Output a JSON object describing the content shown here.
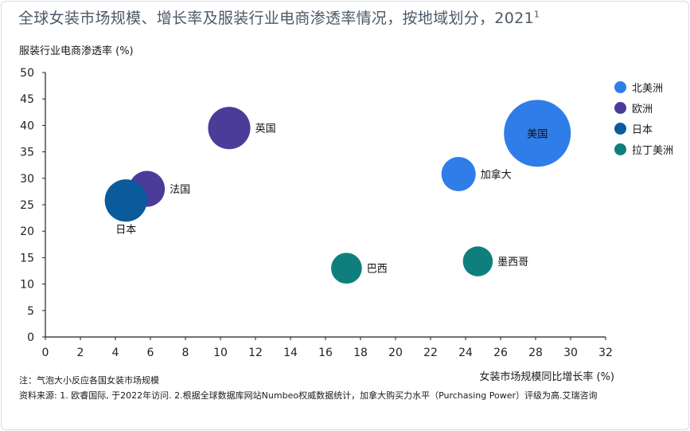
{
  "title": "全球女装市场规模、增长率及服装行业电商渗透率情况，按地域划分，2021",
  "title_sup": "1",
  "note": "注：气泡大小反应各国女装市场规模",
  "source": "资料来源: 1. 欧睿国际, 于2022年访问. 2.根据全球数据库网站Numbeo权威数据统计，加拿大购买力水平（Purchasing Power）评级为高.艾瑞咨询",
  "chart_data": {
    "type": "scatter",
    "xlabel": "女装市场规模同比增长率 (%)",
    "ylabel": "服装行业电商渗透率 (%)",
    "xlim": [
      0,
      32
    ],
    "ylim": [
      0,
      50
    ],
    "xticks": [
      0,
      2,
      4,
      6,
      8,
      10,
      12,
      14,
      16,
      18,
      20,
      22,
      24,
      26,
      28,
      30,
      32
    ],
    "yticks": [
      0,
      5,
      10,
      15,
      20,
      25,
      30,
      35,
      40,
      45,
      50
    ],
    "grid": false,
    "legend_position": "right",
    "legend": [
      {
        "name": "北美洲",
        "color": "#2e7de8"
      },
      {
        "name": "欧洲",
        "color": "#4b3c9a"
      },
      {
        "name": "日本",
        "color": "#0a5b9c"
      },
      {
        "name": "拉丁美洲",
        "color": "#0e7f7c"
      }
    ],
    "points": [
      {
        "label": "美国",
        "group": "北美洲",
        "x": 28.1,
        "y": 38.5,
        "size": 40,
        "label_pos": "center"
      },
      {
        "label": "加拿大",
        "group": "北美洲",
        "x": 23.6,
        "y": 30.8,
        "size": 10.5,
        "label_pos": "right"
      },
      {
        "label": "英国",
        "group": "欧洲",
        "x": 10.5,
        "y": 39.5,
        "size": 16,
        "label_pos": "right"
      },
      {
        "label": "法国",
        "group": "欧洲",
        "x": 5.8,
        "y": 28.0,
        "size": 11.5,
        "label_pos": "right"
      },
      {
        "label": "日本",
        "group": "日本",
        "x": 4.6,
        "y": 25.8,
        "size": 16,
        "label_pos": "below"
      },
      {
        "label": "巴西",
        "group": "拉丁美洲",
        "x": 17.2,
        "y": 13.0,
        "size": 8.5,
        "label_pos": "right"
      },
      {
        "label": "墨西哥",
        "group": "拉丁美洲",
        "x": 24.7,
        "y": 14.3,
        "size": 8,
        "label_pos": "right"
      }
    ]
  }
}
